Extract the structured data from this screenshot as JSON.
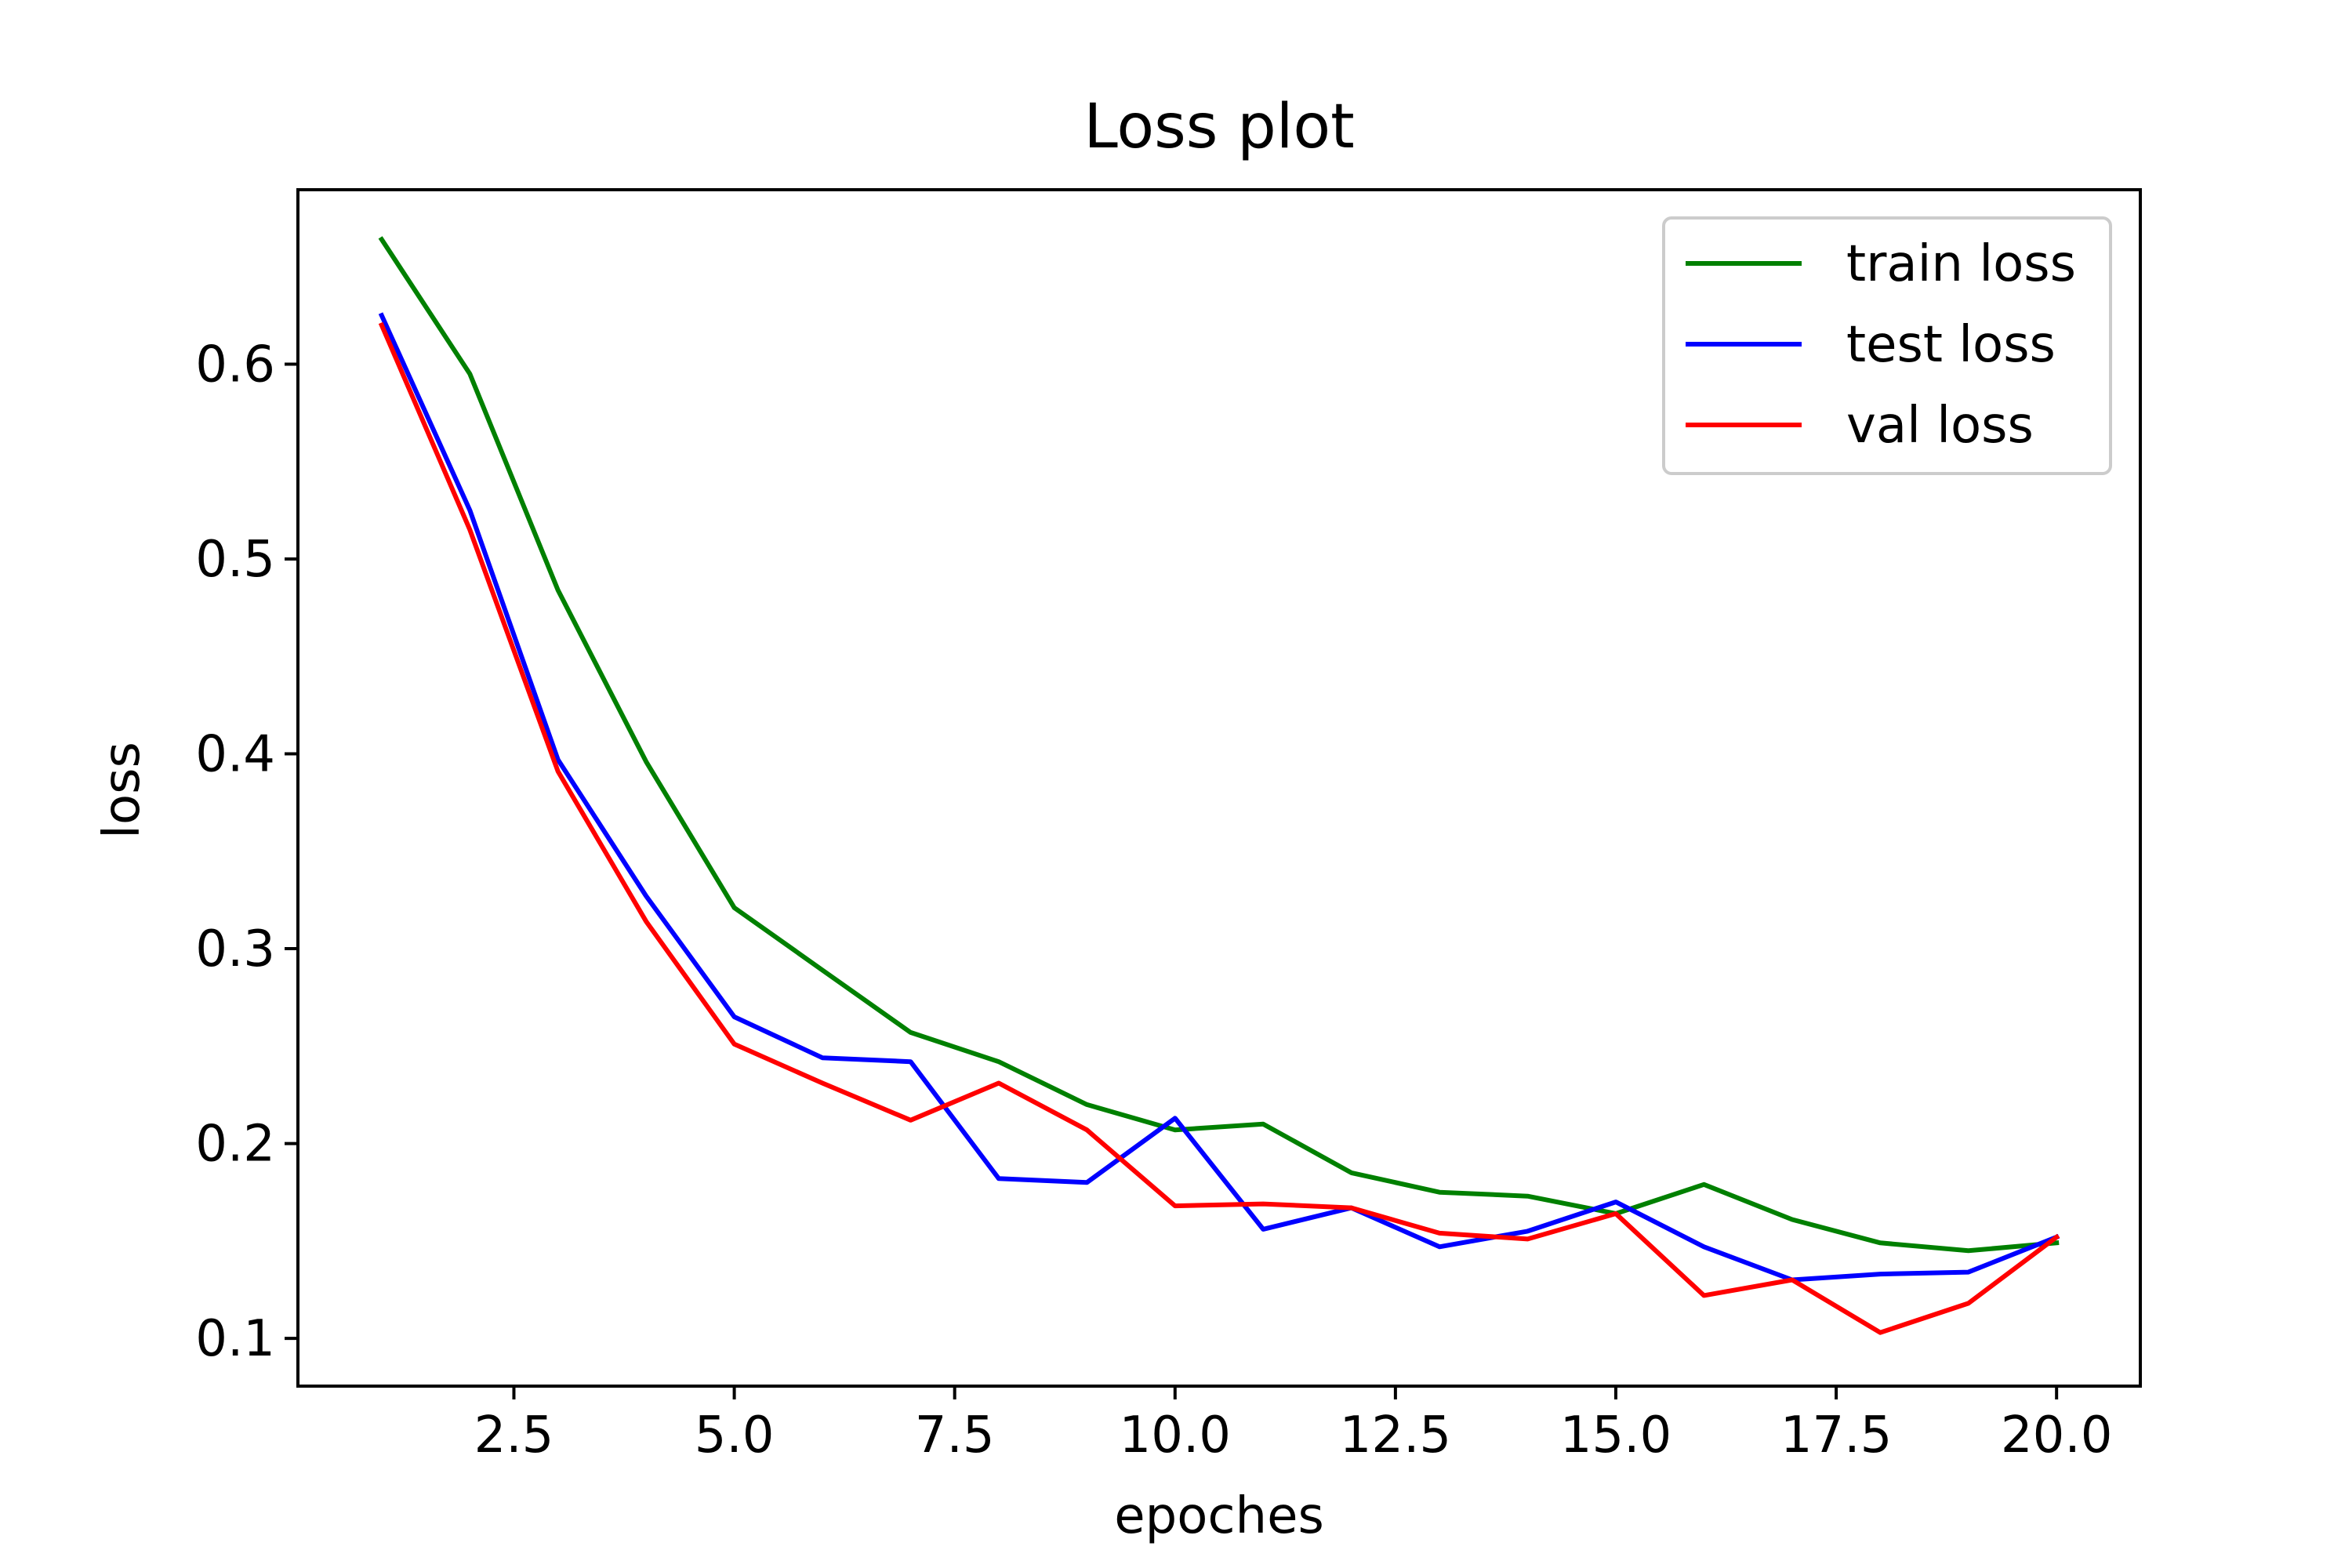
{
  "chart_data": {
    "type": "line",
    "title": "Loss plot",
    "xlabel": "epoches",
    "ylabel": "loss",
    "x": [
      1,
      2,
      3,
      4,
      5,
      6,
      7,
      8,
      9,
      10,
      11,
      12,
      13,
      14,
      15,
      16,
      17,
      18,
      19,
      20
    ],
    "xlim": [
      0.05,
      20.95
    ],
    "ylim": [
      0.0755,
      0.6895
    ],
    "xticks": [
      2.5,
      5.0,
      7.5,
      10.0,
      12.5,
      15.0,
      17.5,
      20.0
    ],
    "xtick_labels": [
      "2.5",
      "5.0",
      "7.5",
      "10.0",
      "12.5",
      "15.0",
      "17.5",
      "20.0"
    ],
    "yticks": [
      0.1,
      0.2,
      0.3,
      0.4,
      0.5,
      0.6
    ],
    "ytick_labels": [
      "0.1",
      "0.2",
      "0.3",
      "0.4",
      "0.5",
      "0.6"
    ],
    "grid": false,
    "legend_position": "top-right",
    "series": [
      {
        "name": "train loss",
        "color": "#008000",
        "values": [
          0.664,
          0.595,
          0.484,
          0.396,
          0.321,
          0.289,
          0.257,
          0.242,
          0.22,
          0.207,
          0.21,
          0.185,
          0.175,
          0.173,
          0.164,
          0.179,
          0.161,
          0.149,
          0.145,
          0.149
        ]
      },
      {
        "name": "test loss",
        "color": "#0000ff",
        "values": [
          0.625,
          0.525,
          0.397,
          0.327,
          0.265,
          0.244,
          0.242,
          0.182,
          0.18,
          0.213,
          0.156,
          0.167,
          0.147,
          0.155,
          0.17,
          0.147,
          0.13,
          0.133,
          0.134,
          0.152
        ]
      },
      {
        "name": "val loss",
        "color": "#ff0000",
        "values": [
          0.62,
          0.515,
          0.391,
          0.314,
          0.251,
          0.231,
          0.212,
          0.231,
          0.207,
          0.168,
          0.169,
          0.167,
          0.154,
          0.151,
          0.164,
          0.122,
          0.13,
          0.103,
          0.118,
          0.152
        ]
      }
    ]
  }
}
